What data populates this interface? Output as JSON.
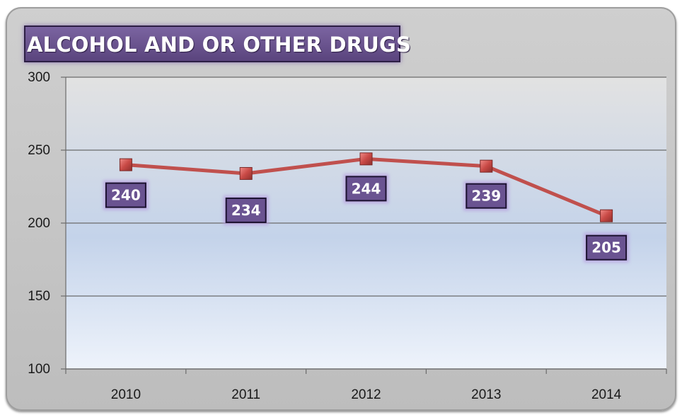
{
  "chart_data": {
    "type": "line",
    "title": "ALCOHOL AND OR OTHER DRUGS",
    "categories": [
      "2010",
      "2011",
      "2012",
      "2013",
      "2014"
    ],
    "series": [
      {
        "values": [
          240,
          234,
          244,
          239,
          205
        ]
      }
    ],
    "data_labels": [
      "240",
      "234",
      "244",
      "239",
      "205"
    ],
    "y_ticks": [
      "100",
      "150",
      "200",
      "250",
      "300"
    ],
    "ylim": [
      100,
      300
    ],
    "grid": true,
    "legend": "none",
    "colors": {
      "line": "#c0504d",
      "marker": "#d9534f",
      "label_bg": "#6a5391",
      "title_bg": "#654e8c",
      "plot_top": "#e2e2e2",
      "plot_mid": "#c4d3ea",
      "plot_bottom": "#eef3fb"
    }
  }
}
